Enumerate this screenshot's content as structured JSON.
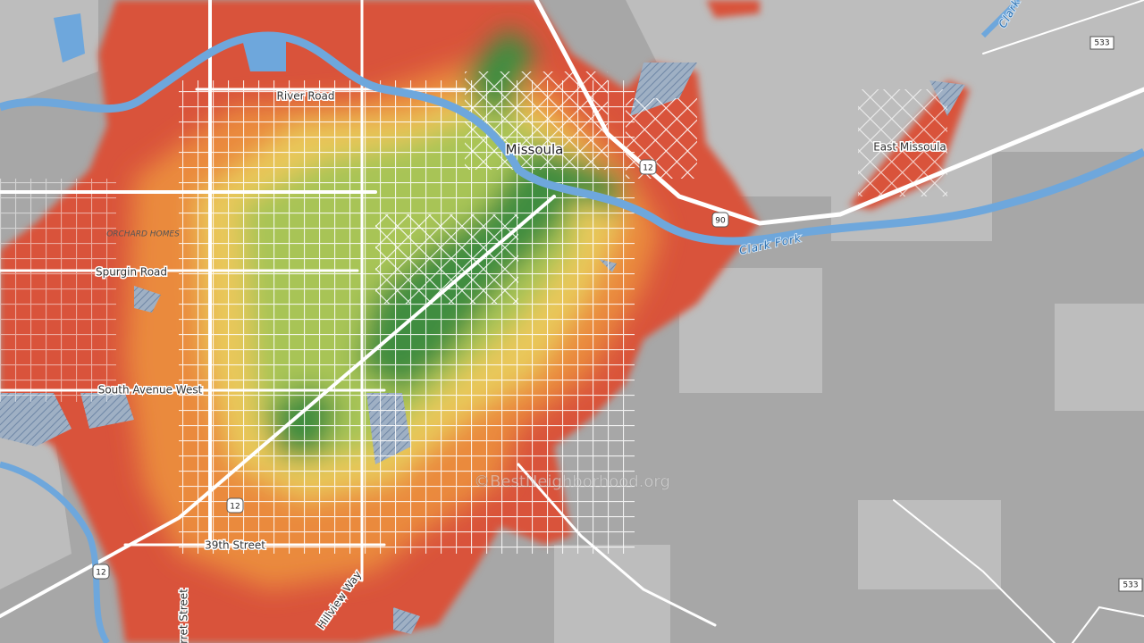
{
  "map": {
    "places": [
      "Missoula",
      "East Missoula"
    ],
    "areas": [
      "ORCHARD HOMES"
    ],
    "roads": [
      "River Road",
      "Spurgin Road",
      "South Avenue West",
      "39th Street",
      "Hillview Way",
      "rret Street"
    ],
    "water": [
      "Clark Fork",
      "Clark"
    ],
    "shields": [
      12,
      12,
      12,
      90,
      533,
      533
    ],
    "watermark": "©BestNeighborhood.org"
  }
}
